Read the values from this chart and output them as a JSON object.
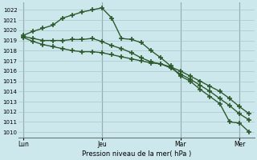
{
  "bg_color": "#cde8ec",
  "grid_color": "#a8c8cc",
  "line_color": "#2d5a2d",
  "marker_color": "#2d5a2d",
  "xlabel": "Pression niveau de la mer( hPa )",
  "ylim": [
    1009.5,
    1022.7
  ],
  "yticks": [
    1010,
    1011,
    1012,
    1013,
    1014,
    1015,
    1016,
    1017,
    1018,
    1019,
    1020,
    1021,
    1022
  ],
  "xtick_labels": [
    "Lun",
    "Jeu",
    "Mar",
    "Mer"
  ],
  "xtick_positions": [
    0,
    8,
    16,
    22
  ],
  "series1_x": [
    0,
    1,
    2,
    3,
    4,
    5,
    6,
    7,
    8,
    9,
    10,
    11,
    12,
    13,
    14,
    15,
    16,
    17,
    18,
    19,
    20,
    21,
    22,
    23
  ],
  "series1_y": [
    1019.5,
    1019.9,
    1020.2,
    1020.5,
    1021.2,
    1021.5,
    1021.8,
    1022.0,
    1022.2,
    1021.2,
    1019.2,
    1019.1,
    1018.8,
    1018.0,
    1017.3,
    1016.5,
    1015.5,
    1015.0,
    1014.2,
    1013.5,
    1012.8,
    1011.0,
    1010.9,
    1010.0
  ],
  "series2_x": [
    0,
    1,
    2,
    3,
    4,
    5,
    6,
    7,
    8,
    9,
    10,
    11,
    12,
    13,
    14,
    15,
    16,
    17,
    18,
    19,
    20,
    21,
    22,
    23
  ],
  "series2_y": [
    1019.4,
    1019.2,
    1019.0,
    1019.0,
    1019.0,
    1019.1,
    1019.1,
    1019.2,
    1018.9,
    1018.5,
    1018.2,
    1017.8,
    1017.3,
    1016.9,
    1016.7,
    1016.3,
    1015.7,
    1015.2,
    1014.6,
    1014.0,
    1013.3,
    1012.6,
    1011.8,
    1011.2
  ],
  "series3_x": [
    0,
    1,
    2,
    3,
    4,
    5,
    6,
    7,
    8,
    9,
    10,
    11,
    12,
    13,
    14,
    15,
    16,
    17,
    18,
    19,
    20,
    21,
    22,
    23
  ],
  "series3_y": [
    1019.3,
    1018.9,
    1018.6,
    1018.4,
    1018.2,
    1018.0,
    1017.9,
    1017.9,
    1017.8,
    1017.6,
    1017.4,
    1017.2,
    1017.0,
    1016.8,
    1016.7,
    1016.4,
    1016.0,
    1015.5,
    1015.0,
    1014.5,
    1014.0,
    1013.3,
    1012.5,
    1011.8
  ],
  "n_points": 24,
  "vline_positions": [
    0,
    8,
    16,
    22
  ]
}
